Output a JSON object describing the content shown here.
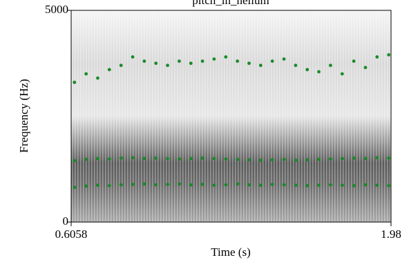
{
  "chart_data": {
    "type": "scatter",
    "title": "pitch_in_helium",
    "x_label": "Time (s)",
    "y_label": "Frequency (Hz)",
    "xlim": [
      0.6058,
      1.98
    ],
    "xticks": [
      0.6058,
      1.98
    ],
    "ylim": [
      0,
      5000
    ],
    "yticks": [
      0,
      5000
    ],
    "x": [
      0.62,
      0.67,
      0.72,
      0.77,
      0.82,
      0.87,
      0.92,
      0.97,
      1.02,
      1.07,
      1.12,
      1.17,
      1.22,
      1.27,
      1.32,
      1.37,
      1.42,
      1.47,
      1.52,
      1.57,
      1.62,
      1.67,
      1.72,
      1.77,
      1.82,
      1.87,
      1.92,
      1.97
    ],
    "series": [
      {
        "color": "#1a8a2a",
        "values": [
          820,
          850,
          870,
          860,
          880,
          890,
          900,
          880,
          890,
          900,
          880,
          890,
          870,
          880,
          900,
          880,
          870,
          890,
          880,
          870,
          860,
          870,
          880,
          870,
          860,
          880,
          870,
          860
        ]
      },
      {
        "color": "#1a8a2a",
        "values": [
          1450,
          1480,
          1500,
          1490,
          1510,
          1520,
          1500,
          1510,
          1500,
          1490,
          1500,
          1510,
          1500,
          1490,
          1480,
          1470,
          1460,
          1470,
          1480,
          1460,
          1470,
          1480,
          1490,
          1500,
          1510,
          1500,
          1520,
          1510
        ]
      },
      {
        "color": "#1a8a2a",
        "values": [
          3300,
          3500,
          3400,
          3600,
          3700,
          3900,
          3800,
          3750,
          3700,
          3800,
          3750,
          3800,
          3850,
          3900,
          3800,
          3750,
          3700,
          3800,
          3850,
          3700,
          3600,
          3550,
          3700,
          3500,
          3800,
          3650,
          3900,
          3950
        ]
      }
    ]
  }
}
